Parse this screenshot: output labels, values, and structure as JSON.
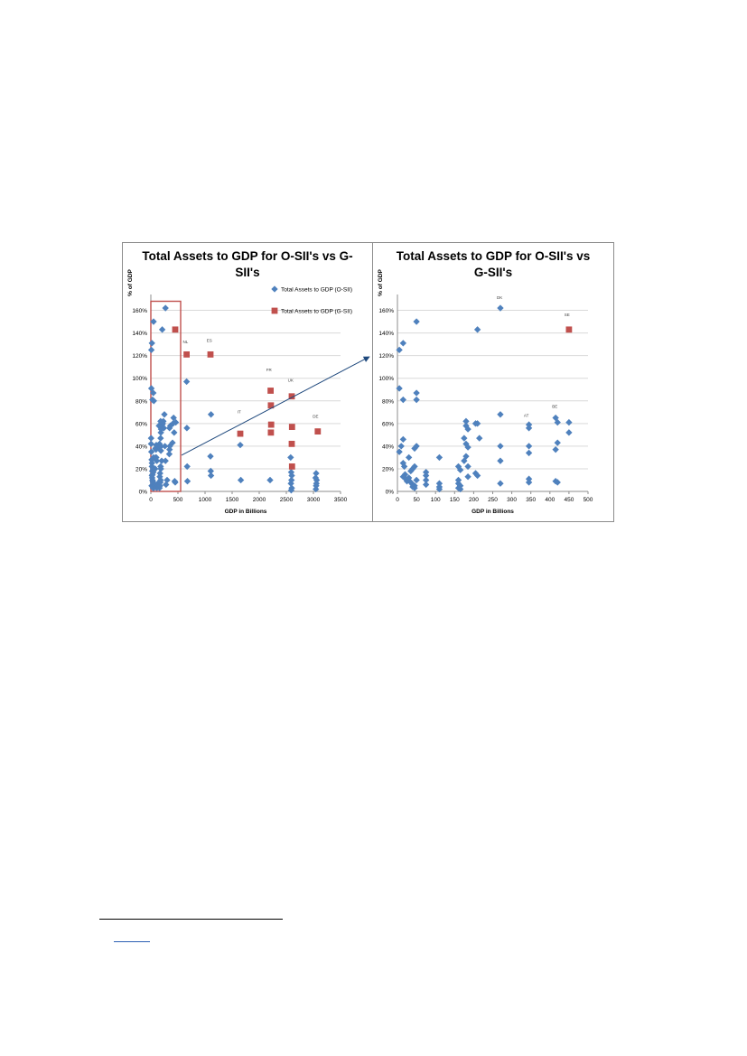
{
  "colors": {
    "osii": "#4f81bd",
    "gsii": "#c0504d",
    "highlight": "#c0504d",
    "arrow": "#1f497d",
    "grid": "#d9d9d9"
  },
  "chart_data": [
    {
      "type": "scatter",
      "title_lines": [
        "Total Assets to GDP for O-SII's vs G-",
        "SII's"
      ],
      "xlabel": "GDP in Billions",
      "ylabel": "% of GDP",
      "xlim": [
        0,
        3500
      ],
      "ylim": [
        0,
        1.7
      ],
      "x_ticks": [
        "0",
        "500",
        "1000",
        "1500",
        "2000",
        "2500",
        "3000",
        "3500"
      ],
      "y_ticks": [
        "0%",
        "20%",
        "40%",
        "60%",
        "80%",
        "100%",
        "120%",
        "140%",
        "160%"
      ],
      "legend": {
        "position": "top-right",
        "entries": [
          "Total Assets to GDP (O-SII)",
          "Total Assets to GDP (G-SII)"
        ]
      },
      "series": [
        {
          "name": "Total Assets to GDP (O-SII)",
          "points": [
            [
              10,
              1.25
            ],
            [
              20,
              1.31
            ],
            [
              10,
              0.91
            ],
            [
              30,
              0.81
            ],
            [
              45,
              0.87
            ],
            [
              55,
              0.8
            ],
            [
              50,
              1.5
            ],
            [
              270,
              1.62
            ],
            [
              210,
              1.43
            ],
            [
              5,
              0.47
            ],
            [
              5,
              0.42
            ],
            [
              10,
              0.35
            ],
            [
              15,
              0.28
            ],
            [
              20,
              0.25
            ],
            [
              20,
              0.22
            ],
            [
              25,
              0.18
            ],
            [
              30,
              0.15
            ],
            [
              20,
              0.14
            ],
            [
              25,
              0.12
            ],
            [
              30,
              0.1
            ],
            [
              35,
              0.09
            ],
            [
              40,
              0.08
            ],
            [
              45,
              0.07
            ],
            [
              50,
              0.06
            ],
            [
              15,
              0.05
            ],
            [
              25,
              0.05
            ],
            [
              35,
              0.04
            ],
            [
              45,
              0.04
            ],
            [
              55,
              0.03
            ],
            [
              60,
              0.04
            ],
            [
              40,
              0.03
            ],
            [
              70,
              0.05
            ],
            [
              80,
              0.06
            ],
            [
              90,
              0.05
            ],
            [
              100,
              0.04
            ],
            [
              110,
              0.03
            ],
            [
              120,
              0.06
            ],
            [
              130,
              0.07
            ],
            [
              140,
              0.05
            ],
            [
              150,
              0.04
            ],
            [
              160,
              0.03
            ],
            [
              170,
              0.05
            ],
            [
              175,
              0.08
            ],
            [
              180,
              0.1
            ],
            [
              165,
              0.13
            ],
            [
              170,
              0.16
            ],
            [
              185,
              0.2
            ],
            [
              180,
              0.22
            ],
            [
              40,
              0.2
            ],
            [
              45,
              0.17
            ],
            [
              50,
              0.3
            ],
            [
              80,
              0.2
            ],
            [
              90,
              0.3
            ],
            [
              100,
              0.3
            ],
            [
              110,
              0.27
            ],
            [
              85,
              0.38
            ],
            [
              95,
              0.37
            ],
            [
              100,
              0.41
            ],
            [
              130,
              0.39
            ],
            [
              150,
              0.39
            ],
            [
              160,
              0.42
            ],
            [
              170,
              0.39
            ],
            [
              180,
              0.4
            ],
            [
              185,
              0.36
            ],
            [
              180,
              0.47
            ],
            [
              185,
              0.52
            ],
            [
              190,
              0.55
            ],
            [
              200,
              0.57
            ],
            [
              210,
              0.59
            ],
            [
              220,
              0.6
            ],
            [
              230,
              0.62
            ],
            [
              240,
              0.56
            ],
            [
              250,
              0.68
            ],
            [
              180,
              0.62
            ],
            [
              150,
              0.58
            ],
            [
              200,
              0.27
            ],
            [
              260,
              0.4
            ],
            [
              270,
              0.27
            ],
            [
              280,
              0.06
            ],
            [
              300,
              0.1
            ],
            [
              340,
              0.33
            ],
            [
              345,
              0.37
            ],
            [
              350,
              0.4
            ],
            [
              345,
              0.56
            ],
            [
              360,
              0.58
            ],
            [
              400,
              0.43
            ],
            [
              410,
              0.6
            ],
            [
              420,
              0.65
            ],
            [
              430,
              0.52
            ],
            [
              440,
              0.09
            ],
            [
              450,
              0.08
            ],
            [
              460,
              0.61
            ],
            [
              660,
              0.97
            ],
            [
              665,
              0.56
            ],
            [
              670,
              0.22
            ],
            [
              675,
              0.09
            ],
            [
              1110,
              0.68
            ],
            [
              1100,
              0.31
            ],
            [
              1105,
              0.18
            ],
            [
              1110,
              0.14
            ],
            [
              1650,
              0.41
            ],
            [
              1660,
              0.1
            ],
            [
              2200,
              0.1
            ],
            [
              2580,
              0.3
            ],
            [
              2590,
              0.17
            ],
            [
              2600,
              0.14
            ],
            [
              2595,
              0.1
            ],
            [
              2585,
              0.07
            ],
            [
              2600,
              0.03
            ],
            [
              2590,
              0.01
            ],
            [
              3050,
              0.16
            ],
            [
              3040,
              0.12
            ],
            [
              3060,
              0.1
            ],
            [
              3055,
              0.07
            ],
            [
              3050,
              0.05
            ],
            [
              3045,
              0.02
            ]
          ]
        },
        {
          "name": "Total Assets to GDP (G-SII)",
          "points": [
            [
              450,
              1.43
            ],
            [
              660,
              1.21
            ],
            [
              1100,
              1.21
            ],
            [
              1650,
              0.51
            ],
            [
              2210,
              0.89
            ],
            [
              2215,
              0.76
            ],
            [
              2220,
              0.59
            ],
            [
              2215,
              0.52
            ],
            [
              2600,
              0.84
            ],
            [
              2605,
              0.57
            ],
            [
              2600,
              0.42
            ],
            [
              2605,
              0.22
            ],
            [
              3080,
              0.53
            ]
          ]
        }
      ],
      "annotations": [
        {
          "text": "NL",
          "x": 640,
          "y": 1.31
        },
        {
          "text": "ES",
          "x": 1080,
          "y": 1.32
        },
        {
          "text": "FR",
          "x": 2180,
          "y": 1.06
        },
        {
          "text": "IT",
          "x": 1630,
          "y": 0.69
        },
        {
          "text": "UK",
          "x": 2580,
          "y": 0.97
        },
        {
          "text": "DE",
          "x": 3040,
          "y": 0.65
        }
      ],
      "highlight_range": {
        "x": [
          0,
          550
        ],
        "y": [
          0,
          1.68
        ]
      }
    },
    {
      "type": "scatter",
      "title_lines": [
        "Total Assets to GDP for O-SII's vs",
        "G-SII's"
      ],
      "xlabel": "GDP in Billions",
      "ylabel": "% of GDP",
      "xlim": [
        0,
        500
      ],
      "ylim": [
        0,
        1.7
      ],
      "x_ticks": [
        "0",
        "50",
        "100",
        "150",
        "200",
        "250",
        "300",
        "350",
        "400",
        "450",
        "500"
      ],
      "y_ticks": [
        "0%",
        "20%",
        "40%",
        "60%",
        "80%",
        "100%",
        "120%",
        "140%",
        "160%"
      ],
      "series": [
        {
          "name": "Total Assets to GDP (O-SII)",
          "points": [
            [
              5,
              1.25
            ],
            [
              15,
              1.31
            ],
            [
              5,
              0.91
            ],
            [
              15,
              0.81
            ],
            [
              50,
              0.87
            ],
            [
              50,
              0.81
            ],
            [
              50,
              1.5
            ],
            [
              270,
              1.62
            ],
            [
              210,
              1.43
            ],
            [
              5,
              0.35
            ],
            [
              10,
              0.4
            ],
            [
              15,
              0.46
            ],
            [
              15,
              0.25
            ],
            [
              18,
              0.22
            ],
            [
              20,
              0.15
            ],
            [
              15,
              0.13
            ],
            [
              22,
              0.11
            ],
            [
              25,
              0.09
            ],
            [
              30,
              0.12
            ],
            [
              35,
              0.08
            ],
            [
              40,
              0.06
            ],
            [
              45,
              0.05
            ],
            [
              40,
              0.04
            ],
            [
              45,
              0.03
            ],
            [
              30,
              0.3
            ],
            [
              35,
              0.18
            ],
            [
              40,
              0.2
            ],
            [
              45,
              0.22
            ],
            [
              45,
              0.38
            ],
            [
              50,
              0.4
            ],
            [
              50,
              0.1
            ],
            [
              75,
              0.17
            ],
            [
              75,
              0.14
            ],
            [
              75,
              0.1
            ],
            [
              75,
              0.06
            ],
            [
              110,
              0.3
            ],
            [
              110,
              0.07
            ],
            [
              110,
              0.04
            ],
            [
              110,
              0.02
            ],
            [
              160,
              0.22
            ],
            [
              165,
              0.19
            ],
            [
              160,
              0.1
            ],
            [
              160,
              0.07
            ],
            [
              165,
              0.05
            ],
            [
              160,
              0.03
            ],
            [
              165,
              0.02
            ],
            [
              180,
              0.62
            ],
            [
              180,
              0.58
            ],
            [
              185,
              0.55
            ],
            [
              175,
              0.47
            ],
            [
              180,
              0.42
            ],
            [
              185,
              0.39
            ],
            [
              180,
              0.31
            ],
            [
              185,
              0.22
            ],
            [
              185,
              0.13
            ],
            [
              175,
              0.27
            ],
            [
              205,
              0.6
            ],
            [
              210,
              0.6
            ],
            [
              215,
              0.47
            ],
            [
              205,
              0.16
            ],
            [
              210,
              0.14
            ],
            [
              270,
              0.68
            ],
            [
              270,
              0.4
            ],
            [
              270,
              0.27
            ],
            [
              270,
              0.07
            ],
            [
              345,
              0.59
            ],
            [
              345,
              0.56
            ],
            [
              345,
              0.4
            ],
            [
              345,
              0.34
            ],
            [
              345,
              0.11
            ],
            [
              345,
              0.08
            ],
            [
              415,
              0.65
            ],
            [
              420,
              0.61
            ],
            [
              420,
              0.43
            ],
            [
              415,
              0.37
            ],
            [
              420,
              0.08
            ],
            [
              415,
              0.09
            ],
            [
              450,
              0.61
            ],
            [
              450,
              0.52
            ]
          ]
        },
        {
          "name": "Total Assets to GDP (G-SII)",
          "points": [
            [
              450,
              1.43
            ]
          ]
        }
      ],
      "annotations": [
        {
          "text": "DK",
          "x": 268,
          "y": 1.7
        },
        {
          "text": "SE",
          "x": 445,
          "y": 1.55
        },
        {
          "text": "AT",
          "x": 338,
          "y": 0.66
        },
        {
          "text": "BE",
          "x": 413,
          "y": 0.74
        }
      ]
    }
  ]
}
